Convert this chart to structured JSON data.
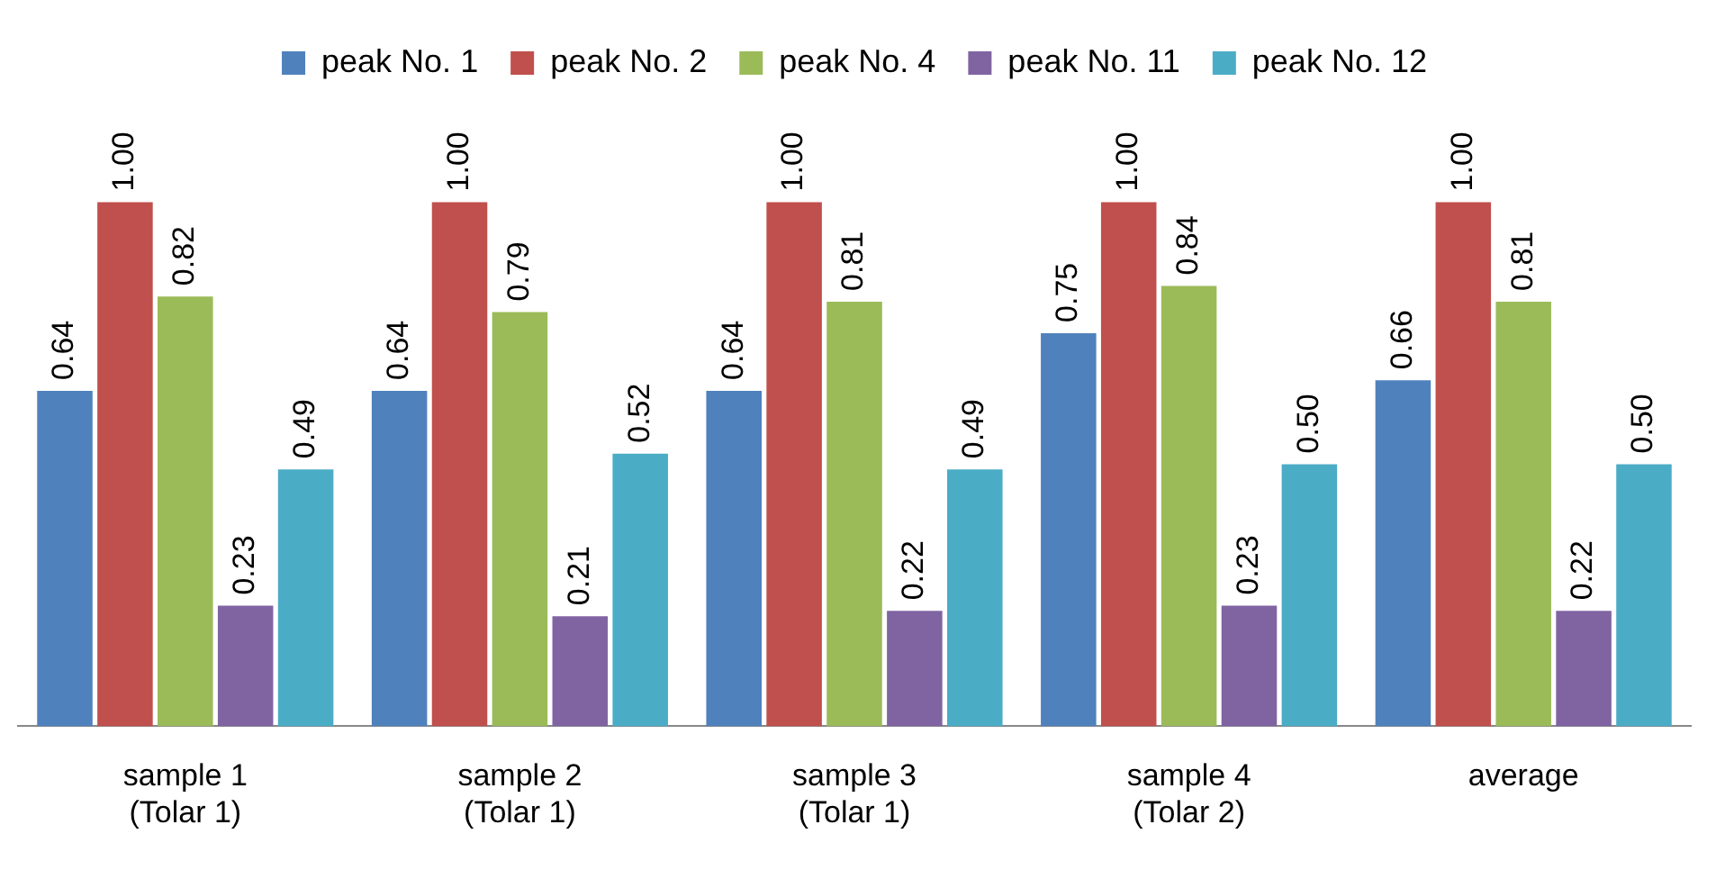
{
  "chart_data": {
    "type": "bar",
    "categories": [
      "sample 1\n(Tolar 1)",
      "sample 2\n(Tolar 1)",
      "sample 3\n(Tolar 1)",
      "sample 4\n(Tolar 2)",
      "average"
    ],
    "series": [
      {
        "name": "peak No. 1",
        "color": "#4f81bd",
        "values": [
          0.64,
          0.64,
          0.64,
          0.75,
          0.66
        ],
        "value_labels": [
          "0.64",
          "0.64",
          "0.64",
          "0.75",
          "0.66"
        ]
      },
      {
        "name": "peak No. 2",
        "color": "#c0504d",
        "values": [
          1.0,
          1.0,
          1.0,
          1.0,
          1.0
        ],
        "value_labels": [
          "1.00",
          "1.00",
          "1.00",
          "1.00",
          "1.00"
        ]
      },
      {
        "name": "peak No. 4",
        "color": "#9bbb59",
        "values": [
          0.82,
          0.79,
          0.81,
          0.84,
          0.81
        ],
        "value_labels": [
          "0.82",
          "0.79",
          "0.81",
          "0.84",
          "0.81"
        ]
      },
      {
        "name": "peak No. 11",
        "color": "#8064a2",
        "values": [
          0.23,
          0.21,
          0.22,
          0.23,
          0.22
        ],
        "value_labels": [
          "0.23",
          "0.21",
          "0.22",
          "0.23",
          "0.22"
        ]
      },
      {
        "name": "peak No. 12",
        "color": "#4bacc6",
        "values": [
          0.49,
          0.52,
          0.49,
          0.5,
          0.5
        ],
        "value_labels": [
          "0.49",
          "0.52",
          "0.49",
          "0.50",
          "0.50"
        ]
      }
    ],
    "legend": "top",
    "grid": false
  }
}
